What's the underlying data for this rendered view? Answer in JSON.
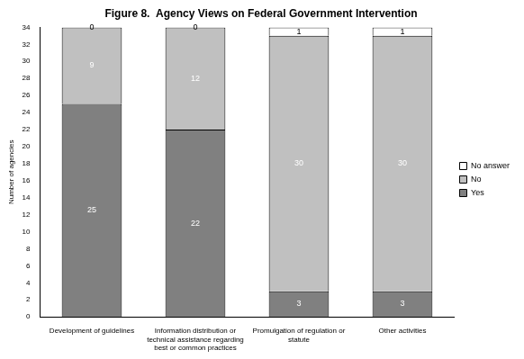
{
  "chart_data": {
    "type": "bar",
    "title": "Figure 8.  Agency Views on Federal Government Intervention",
    "y_label": "Number of agencies",
    "categories": [
      "Development of guidelines",
      "Information distribution or technical assistance regarding best or common practices",
      "Promulgation of regulation or statute",
      "Other activities"
    ],
    "series": [
      {
        "name": "Yes",
        "color": "#808080",
        "values": [
          25,
          22,
          3,
          3
        ]
      },
      {
        "name": "No",
        "color": "#c0c0c0",
        "values": [
          9,
          12,
          30,
          30
        ]
      },
      {
        "name": "No answer",
        "color": "#ffffff",
        "values": [
          0,
          0,
          1,
          1
        ]
      }
    ],
    "ylim": [
      0,
      34
    ],
    "yticks": [
      0,
      2,
      4,
      6,
      8,
      10,
      12,
      14,
      16,
      18,
      20,
      22,
      24,
      26,
      28,
      30,
      32,
      34
    ],
    "stacked": true,
    "data_labels": true,
    "legend": "right",
    "grid": false
  }
}
